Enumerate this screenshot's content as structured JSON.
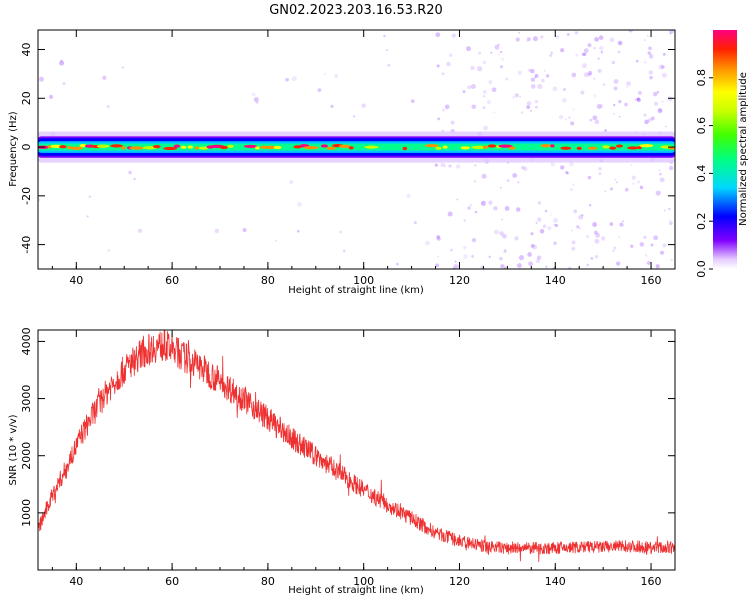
{
  "title": "GN02.2023.203.16.53.R20",
  "chart_data": [
    {
      "type": "heatmap",
      "xlabel": "Height of straight line (km)",
      "ylabel": "Frequency (Hz)",
      "xlim": [
        32,
        165
      ],
      "ylim": [
        -50,
        48
      ],
      "xticks": [
        40,
        60,
        80,
        100,
        120,
        140,
        160
      ],
      "yticks": [
        -40,
        -20,
        0,
        20,
        40
      ],
      "grid": false,
      "band_center_hz": 0,
      "band_halfwidth_hz": 4,
      "colorbar": {
        "label": "Normalized spectral amplitude",
        "range": [
          0,
          1
        ],
        "ticks": [
          0.0,
          0.2,
          0.4,
          0.6,
          0.8
        ],
        "colors": [
          "#ffffff",
          "#d9b3ff",
          "#8000ff",
          "#0000ff",
          "#00d0ff",
          "#00ff80",
          "#40ff00",
          "#c0ff00",
          "#ffff00",
          "#ff9000",
          "#ff2000",
          "#ff0080"
        ]
      }
    },
    {
      "type": "line",
      "xlabel": "Height of straight line (km)",
      "ylabel": "SNR (10 * v/v)",
      "xlim": [
        32,
        165
      ],
      "ylim": [
        0,
        4200
      ],
      "xticks": [
        40,
        60,
        80,
        100,
        120,
        140,
        160
      ],
      "yticks": [
        1000,
        2000,
        3000,
        4000
      ],
      "grid": false,
      "color": "#ee3030",
      "series": [
        {
          "x": [
            32,
            35,
            38,
            41,
            44,
            47,
            50,
            53,
            56,
            58,
            60,
            63,
            66,
            70,
            75,
            80,
            85,
            90,
            95,
            100,
            105,
            110,
            115,
            120,
            125,
            130,
            135,
            140,
            145,
            150,
            155,
            160,
            165
          ],
          "values": [
            700,
            1300,
            1800,
            2350,
            2800,
            3200,
            3500,
            3750,
            3900,
            3930,
            3870,
            3700,
            3550,
            3300,
            3000,
            2650,
            2300,
            2000,
            1700,
            1400,
            1150,
            900,
            650,
            500,
            420,
            380,
            380,
            380,
            400,
            400,
            420,
            400,
            380
          ]
        }
      ]
    }
  ]
}
